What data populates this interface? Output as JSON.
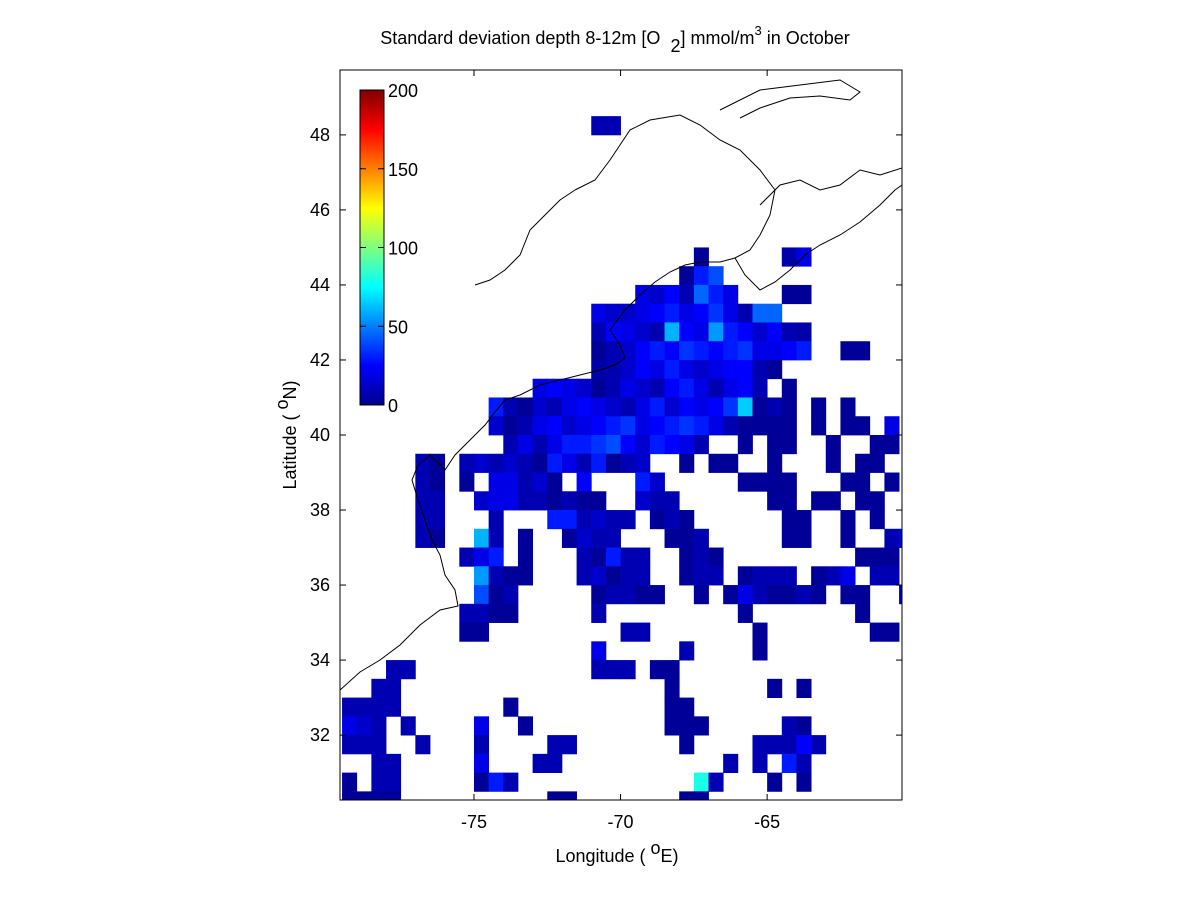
{
  "chart_data": {
    "type": "heatmap",
    "title_parts": [
      "Standard deviation depth 8-12m [O",
      "2",
      "] mmol/m",
      "3",
      " in October"
    ],
    "xlabel_parts": [
      "Longitude ( ",
      "o",
      "E)"
    ],
    "ylabel_parts": [
      "Latitude ( ",
      "o",
      "N)"
    ],
    "xlim": [
      -79.57,
      -60.4
    ],
    "ylim": [
      30.27,
      49.73
    ],
    "xticks": [
      -75,
      -70,
      -65
    ],
    "yticks": [
      32,
      34,
      36,
      38,
      40,
      42,
      44,
      46,
      48
    ],
    "cell_size": 0.5,
    "colorbar": {
      "colormap": "jet",
      "clim": [
        0,
        200
      ],
      "ticks": [
        0,
        50,
        100,
        150,
        200
      ]
    },
    "rows": [
      {
        "lat": 48.0,
        "lon": [
          -71.0,
          -70.5
        ],
        "values": [
          10,
          10
        ]
      },
      {
        "lat": 44.5,
        "lon": [
          -67.5,
          -64.5,
          -64.0
        ],
        "values": [
          5,
          8,
          20
        ]
      },
      {
        "lat": 44.0,
        "lon": [
          -68.0,
          -67.5,
          -67.0
        ],
        "values": [
          5,
          30,
          40
        ]
      },
      {
        "lat": 43.5,
        "lon": [
          -69.5,
          -69.0,
          -68.5,
          -68.0,
          -67.5,
          -67.0,
          -66.5,
          -64.5,
          -64.0
        ],
        "values": [
          20,
          15,
          25,
          10,
          45,
          30,
          20,
          5,
          5
        ]
      },
      {
        "lat": 43.0,
        "lon": [
          -71.0,
          -70.5,
          -70.0,
          -69.5,
          -69.0,
          -68.5,
          -68.0,
          -67.5,
          -67.0,
          -66.5,
          -66.0,
          -65.5,
          -65.0
        ],
        "values": [
          20,
          15,
          15,
          20,
          25,
          30,
          20,
          25,
          35,
          20,
          10,
          45,
          45
        ]
      },
      {
        "lat": 42.5,
        "lon": [
          -71.0,
          -70.5,
          -70.0,
          -69.5,
          -69.0,
          -68.5,
          -68.0,
          -67.5,
          -67.0,
          -66.5,
          -66.0,
          -65.5,
          -65.0,
          -64.5,
          -64.0
        ],
        "values": [
          10,
          25,
          20,
          15,
          10,
          60,
          25,
          20,
          55,
          30,
          25,
          15,
          25,
          10,
          8
        ]
      },
      {
        "lat": 42.0,
        "lon": [
          -71.0,
          -70.5,
          -70.0,
          -69.5,
          -69.0,
          -68.5,
          -68.0,
          -67.5,
          -67.0,
          -66.5,
          -66.0,
          -65.5,
          -65.0,
          -64.5,
          -64.0,
          -62.5,
          -62.0
        ],
        "values": [
          5,
          10,
          15,
          25,
          30,
          25,
          35,
          30,
          25,
          30,
          35,
          20,
          20,
          25,
          30,
          5,
          5
        ]
      },
      {
        "lat": 41.5,
        "lon": [
          -71.0,
          -70.5,
          -70.0,
          -69.5,
          -69.0,
          -68.5,
          -68.0,
          -67.5,
          -67.0,
          -66.5,
          -66.0,
          -65.5,
          -65.0
        ],
        "values": [
          8,
          10,
          15,
          25,
          20,
          30,
          20,
          15,
          20,
          25,
          25,
          10,
          5
        ]
      },
      {
        "lat": 41.0,
        "lon": [
          -73.0,
          -72.5,
          -72.0,
          -71.5,
          -71.0,
          -70.5,
          -70.0,
          -69.5,
          -69.0,
          -68.5,
          -68.0,
          -67.5,
          -67.0,
          -66.5,
          -66.0,
          -65.5,
          -64.5
        ],
        "values": [
          20,
          25,
          20,
          15,
          5,
          10,
          20,
          15,
          10,
          25,
          30,
          20,
          10,
          20,
          25,
          10,
          5
        ]
      },
      {
        "lat": 40.5,
        "lon": [
          -74.5,
          -74.0,
          -73.5,
          -73.0,
          -72.5,
          -72.0,
          -71.5,
          -71.0,
          -70.5,
          -70.0,
          -69.5,
          -69.0,
          -68.5,
          -68.0,
          -67.5,
          -67.0,
          -66.5,
          -66.0,
          -65.5,
          -65.0,
          -64.5,
          -63.5,
          -62.5
        ],
        "values": [
          30,
          10,
          5,
          15,
          10,
          20,
          25,
          20,
          15,
          10,
          20,
          30,
          15,
          25,
          20,
          25,
          35,
          65,
          5,
          10,
          5,
          5,
          5
        ]
      },
      {
        "lat": 40.0,
        "lon": [
          -74.5,
          -74.0,
          -73.5,
          -73.0,
          -72.5,
          -72.0,
          -71.5,
          -71.0,
          -70.5,
          -70.0,
          -69.5,
          -69.0,
          -68.5,
          -68.0,
          -67.5,
          -67.0,
          -66.5,
          -66.0,
          -65.5,
          -65.0,
          -64.5,
          -63.5,
          -62.5,
          -62.0,
          -61.0
        ],
        "values": [
          15,
          5,
          10,
          20,
          25,
          15,
          20,
          25,
          30,
          35,
          20,
          25,
          30,
          35,
          30,
          20,
          10,
          5,
          5,
          5,
          5,
          5,
          5,
          5,
          20
        ]
      },
      {
        "lat": 39.5,
        "lon": [
          -74.0,
          -73.5,
          -73.0,
          -72.5,
          -72.0,
          -71.5,
          -71.0,
          -70.5,
          -70.0,
          -69.5,
          -69.0,
          -68.5,
          -68.0,
          -67.5,
          -66.0,
          -65.0,
          -64.5,
          -63.0,
          -61.5,
          -61.0
        ],
        "values": [
          10,
          20,
          10,
          20,
          30,
          30,
          35,
          40,
          25,
          15,
          30,
          25,
          20,
          10,
          5,
          5,
          5,
          5,
          5,
          5
        ]
      },
      {
        "lat": 39.0,
        "lon": [
          -77.0,
          -76.5,
          -75.5,
          -75.0,
          -74.5,
          -74.0,
          -73.5,
          -73.0,
          -72.5,
          -72.0,
          -71.5,
          -71.0,
          -70.5,
          -70.0,
          -69.5,
          -68.0,
          -67.0,
          -66.5,
          -65.0,
          -63.0,
          -62.0,
          -61.5
        ],
        "values": [
          10,
          5,
          10,
          15,
          10,
          15,
          10,
          5,
          30,
          20,
          10,
          30,
          5,
          10,
          15,
          5,
          5,
          5,
          5,
          5,
          5,
          5
        ]
      },
      {
        "lat": 38.5,
        "lon": [
          -77.0,
          -76.5,
          -75.5,
          -74.5,
          -74.0,
          -73.5,
          -73.0,
          -72.5,
          -71.5,
          -69.5,
          -69.0,
          -66.0,
          -65.5,
          -65.0,
          -64.5,
          -62.5,
          -62.0,
          -61.0
        ],
        "values": [
          10,
          5,
          5,
          20,
          20,
          10,
          15,
          5,
          25,
          30,
          15,
          5,
          5,
          5,
          5,
          5,
          5,
          5
        ]
      },
      {
        "lat": 38.0,
        "lon": [
          -77.0,
          -76.5,
          -75.0,
          -74.5,
          -74.0,
          -73.5,
          -73.0,
          -72.5,
          -72.0,
          -71.5,
          -71.0,
          -69.5,
          -69.0,
          -68.5,
          -65.0,
          -64.5,
          -63.5,
          -63.0,
          -62.0,
          -61.5
        ],
        "values": [
          10,
          10,
          15,
          20,
          20,
          10,
          10,
          5,
          10,
          5,
          5,
          15,
          10,
          10,
          5,
          5,
          5,
          5,
          5,
          5
        ]
      },
      {
        "lat": 37.5,
        "lon": [
          -77.0,
          -76.5,
          -74.5,
          -72.5,
          -72.0,
          -71.5,
          -71.0,
          -70.5,
          -70.0,
          -69.0,
          -68.5,
          -68.0,
          -64.5,
          -64.0,
          -62.5,
          -61.5
        ],
        "values": [
          10,
          10,
          10,
          30,
          30,
          10,
          15,
          10,
          10,
          5,
          10,
          5,
          5,
          5,
          5,
          5
        ]
      },
      {
        "lat": 37.0,
        "lon": [
          -77.0,
          -76.5,
          -75.0,
          -74.5,
          -73.5,
          -72.0,
          -71.5,
          -71.0,
          -70.5,
          -68.5,
          -68.0,
          -67.5,
          -64.5,
          -64.0,
          -62.5,
          -61.0,
          -60.5
        ],
        "values": [
          10,
          5,
          60,
          10,
          5,
          5,
          15,
          10,
          10,
          5,
          5,
          10,
          5,
          5,
          5,
          10,
          20
        ]
      },
      {
        "lat": 36.5,
        "lon": [
          -75.5,
          -75.0,
          -74.5,
          -73.5,
          -71.5,
          -71.0,
          -70.5,
          -70.0,
          -69.5,
          -68.0,
          -67.5,
          -67.0,
          -62.0,
          -61.5,
          -61.0
        ],
        "values": [
          10,
          20,
          30,
          5,
          10,
          5,
          30,
          10,
          10,
          5,
          10,
          5,
          5,
          5,
          5
        ]
      },
      {
        "lat": 36.0,
        "lon": [
          -75.0,
          -74.5,
          -74.0,
          -73.5,
          -71.5,
          -71.0,
          -70.5,
          -70.0,
          -69.5,
          -68.0,
          -67.5,
          -67.0,
          -66.0,
          -65.5,
          -65.0,
          -64.5,
          -63.5,
          -63.0,
          -62.5,
          -61.5,
          -61.0
        ],
        "values": [
          55,
          10,
          5,
          5,
          10,
          15,
          5,
          10,
          10,
          5,
          10,
          10,
          5,
          10,
          10,
          10,
          5,
          10,
          20,
          10,
          10
        ]
      },
      {
        "lat": 35.5,
        "lon": [
          -75.0,
          -74.5,
          -74.0,
          -71.0,
          -70.5,
          -70.0,
          -69.5,
          -69.0,
          -67.5,
          -66.5,
          -66.0,
          -65.5,
          -65.0,
          -64.5,
          -64.0,
          -63.5,
          -62.5,
          -62.0,
          -60.5
        ],
        "values": [
          40,
          5,
          10,
          5,
          10,
          10,
          5,
          5,
          5,
          5,
          20,
          10,
          5,
          5,
          10,
          5,
          5,
          5,
          10
        ]
      },
      {
        "lat": 35.0,
        "lon": [
          -75.5,
          -75.0,
          -74.5,
          -74.0,
          -71.0,
          -66.0,
          -62.0
        ],
        "values": [
          10,
          10,
          5,
          5,
          10,
          5,
          5
        ]
      },
      {
        "lat": 34.5,
        "lon": [
          -75.5,
          -75.0,
          -70.0,
          -69.5,
          -65.5,
          -61.5,
          -61.0
        ],
        "values": [
          5,
          5,
          10,
          10,
          5,
          5,
          5
        ]
      },
      {
        "lat": 34.0,
        "lon": [
          -71.0,
          -68.0,
          -65.5
        ],
        "values": [
          20,
          10,
          5
        ]
      },
      {
        "lat": 33.5,
        "lon": [
          -78.0,
          -77.5,
          -71.0,
          -70.5,
          -70.0,
          -69.0,
          -68.5
        ],
        "values": [
          10,
          10,
          10,
          10,
          10,
          5,
          5
        ]
      },
      {
        "lat": 33.0,
        "lon": [
          -78.5,
          -78.0,
          -68.5,
          -65.0,
          -64.0
        ],
        "values": [
          10,
          10,
          5,
          5,
          5
        ]
      },
      {
        "lat": 32.5,
        "lon": [
          -79.5,
          -79.0,
          -78.5,
          -78.0,
          -74.0,
          -68.5,
          -68.0
        ],
        "values": [
          10,
          10,
          10,
          10,
          5,
          5,
          5
        ]
      },
      {
        "lat": 32.0,
        "lon": [
          -79.5,
          -79.0,
          -78.5,
          -77.5,
          -75.0,
          -73.5,
          -68.5,
          -68.0,
          -67.5,
          -64.5,
          -64.0
        ],
        "values": [
          20,
          15,
          10,
          10,
          20,
          5,
          5,
          5,
          5,
          10,
          5
        ]
      },
      {
        "lat": 31.5,
        "lon": [
          -79.5,
          -79.0,
          -78.5,
          -77.0,
          -75.0,
          -72.5,
          -72.0,
          -68.0,
          -65.5,
          -65.0,
          -64.5,
          -64.0,
          -63.5
        ],
        "values": [
          10,
          10,
          10,
          10,
          10,
          10,
          10,
          5,
          10,
          10,
          10,
          25,
          10
        ]
      },
      {
        "lat": 31.0,
        "lon": [
          -78.5,
          -78.0,
          -75.0,
          -73.0,
          -72.5,
          -66.5,
          -65.5,
          -64.5,
          -64.0
        ],
        "values": [
          10,
          10,
          20,
          10,
          10,
          10,
          10,
          30,
          10
        ]
      },
      {
        "lat": 30.5,
        "lon": [
          -79.5,
          -78.5,
          -78.0,
          -75.0,
          -74.5,
          -74.0,
          -67.5,
          -67.0,
          -65.0,
          -64.0
        ],
        "values": [
          5,
          10,
          10,
          5,
          30,
          10,
          80,
          10,
          5,
          5
        ]
      },
      {
        "lat": 30.0,
        "lon": [
          -79.5,
          -79.0,
          -78.5,
          -78.0,
          -72.5,
          -72.0,
          -68.0,
          -67.5
        ],
        "values": [
          5,
          5,
          5,
          5,
          5,
          5,
          5,
          5
        ]
      }
    ]
  }
}
